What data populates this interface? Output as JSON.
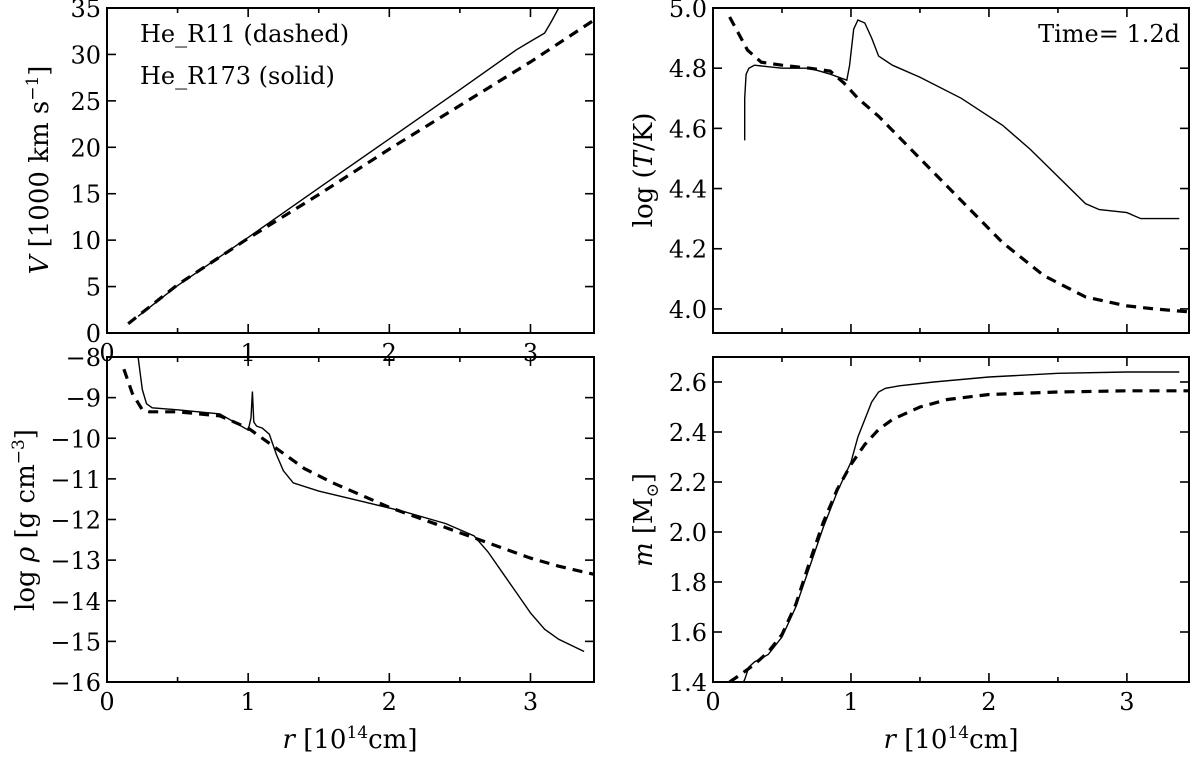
{
  "chart_data": [
    {
      "type": "line",
      "id": "velocity",
      "xlabel": "r [10^14 cm]",
      "ylabel": "V [1000 km s^-1]",
      "xlim": [
        0,
        3.45
      ],
      "ylim": [
        0,
        35
      ],
      "xticks": [
        0,
        1,
        2,
        3
      ],
      "yticks": [
        0,
        5,
        10,
        15,
        20,
        25,
        30,
        35
      ],
      "xticklabels": [
        "0",
        "1",
        "2",
        "3"
      ],
      "yticklabels": [
        "0",
        "5",
        "10",
        "15",
        "20",
        "25",
        "30",
        "35"
      ],
      "annotations": [
        "He_R11 (dashed)",
        "He_R173 (solid)"
      ],
      "series": [
        {
          "style": "dashed",
          "x": [
            0.15,
            0.5,
            1.0,
            1.5,
            2.0,
            2.5,
            3.0,
            3.45
          ],
          "y": [
            1.0,
            5.2,
            10.2,
            14.9,
            19.8,
            24.5,
            29.2,
            33.7
          ]
        },
        {
          "style": "solid",
          "x": [
            0.22,
            0.5,
            1.0,
            1.5,
            2.0,
            2.5,
            2.9,
            3.0,
            3.1,
            3.15,
            3.2
          ],
          "y": [
            1.8,
            5.1,
            10.3,
            15.6,
            20.9,
            26.2,
            30.5,
            31.4,
            32.3,
            33.6,
            35.0
          ]
        }
      ]
    },
    {
      "type": "line",
      "id": "temperature",
      "xlabel": "",
      "ylabel": "log (T/K)",
      "xlim": [
        0,
        3.45
      ],
      "ylim": [
        3.92,
        5.0
      ],
      "xticks": [
        0,
        1,
        2,
        3
      ],
      "yticks": [
        4.0,
        4.2,
        4.4,
        4.6,
        4.8,
        5.0
      ],
      "xticklabels": [],
      "yticklabels": [
        "4.0",
        "4.2",
        "4.4",
        "4.6",
        "4.8",
        "5.0"
      ],
      "annotations": [
        "Time= 1.2d"
      ],
      "series": [
        {
          "style": "dashed",
          "x": [
            0.12,
            0.18,
            0.25,
            0.35,
            0.5,
            0.7,
            0.85,
            0.95,
            1.05,
            1.2,
            1.5,
            1.8,
            2.1,
            2.4,
            2.7,
            3.0,
            3.2,
            3.45
          ],
          "y": [
            4.97,
            4.92,
            4.86,
            4.82,
            4.81,
            4.8,
            4.79,
            4.75,
            4.7,
            4.64,
            4.5,
            4.36,
            4.22,
            4.11,
            4.04,
            4.01,
            4.0,
            3.99
          ]
        },
        {
          "style": "solid",
          "x": [
            0.23,
            0.23,
            0.24,
            0.26,
            0.3,
            0.5,
            0.7,
            0.85,
            0.97,
            0.99,
            1.02,
            1.05,
            1.1,
            1.15,
            1.2,
            1.3,
            1.5,
            1.8,
            2.1,
            2.3,
            2.5,
            2.7,
            2.8,
            3.0,
            3.05,
            3.1,
            3.38
          ],
          "y": [
            4.56,
            4.7,
            4.78,
            4.8,
            4.81,
            4.8,
            4.8,
            4.78,
            4.76,
            4.81,
            4.93,
            4.96,
            4.95,
            4.9,
            4.84,
            4.81,
            4.77,
            4.7,
            4.61,
            4.53,
            4.44,
            4.35,
            4.33,
            4.32,
            4.31,
            4.3,
            4.3
          ]
        }
      ]
    },
    {
      "type": "line",
      "id": "density",
      "xlabel": "r [10^14 cm]",
      "ylabel": "log ρ [g cm^-3]",
      "xlim": [
        0,
        3.45
      ],
      "ylim": [
        -16,
        -8
      ],
      "xticks": [
        0,
        1,
        2,
        3
      ],
      "yticks": [
        -16,
        -15,
        -14,
        -13,
        -12,
        -11,
        -10,
        -9,
        -8
      ],
      "xticklabels": [
        "0",
        "1",
        "2",
        "3"
      ],
      "yticklabels": [
        "−16",
        "−15",
        "−14",
        "−13",
        "−12",
        "−11",
        "−10",
        "−9",
        "−8"
      ],
      "annotations": [],
      "series": [
        {
          "style": "dashed",
          "x": [
            0.12,
            0.18,
            0.25,
            0.3,
            0.5,
            0.8,
            1.0,
            1.2,
            1.4,
            1.6,
            1.8,
            2.0,
            2.2,
            2.4,
            2.6,
            2.8,
            3.0,
            3.2,
            3.45
          ],
          "y": [
            -8.3,
            -8.9,
            -9.3,
            -9.35,
            -9.35,
            -9.45,
            -9.75,
            -10.25,
            -10.75,
            -11.1,
            -11.4,
            -11.7,
            -11.95,
            -12.2,
            -12.45,
            -12.7,
            -12.95,
            -13.15,
            -13.35
          ]
        },
        {
          "style": "solid",
          "x": [
            0.22,
            0.25,
            0.28,
            0.32,
            0.5,
            0.8,
            1.0,
            1.02,
            1.03,
            1.04,
            1.06,
            1.1,
            1.15,
            1.2,
            1.25,
            1.32,
            1.5,
            1.8,
            2.1,
            2.4,
            2.6,
            2.7,
            2.8,
            2.9,
            3.0,
            3.1,
            3.2,
            3.38
          ],
          "y": [
            -8.0,
            -8.8,
            -9.15,
            -9.25,
            -9.3,
            -9.4,
            -9.8,
            -9.5,
            -8.85,
            -9.6,
            -9.7,
            -9.75,
            -9.9,
            -10.4,
            -10.8,
            -11.1,
            -11.3,
            -11.55,
            -11.8,
            -12.1,
            -12.4,
            -12.8,
            -13.3,
            -13.8,
            -14.3,
            -14.7,
            -14.95,
            -15.25
          ]
        }
      ]
    },
    {
      "type": "line",
      "id": "mass",
      "xlabel": "r [10^14 cm]",
      "ylabel": "m [M⊙]",
      "xlim": [
        0,
        3.45
      ],
      "ylim": [
        1.4,
        2.7
      ],
      "xticks": [
        0,
        1,
        2,
        3
      ],
      "yticks": [
        1.4,
        1.6,
        1.8,
        2.0,
        2.2,
        2.4,
        2.6
      ],
      "xticklabels": [
        "0",
        "1",
        "2",
        "3"
      ],
      "yticklabels": [
        "1.4",
        "1.6",
        "1.8",
        "2.0",
        "2.2",
        "2.4",
        "2.6"
      ],
      "annotations": [],
      "series": [
        {
          "style": "dashed",
          "x": [
            0.12,
            0.2,
            0.3,
            0.4,
            0.5,
            0.6,
            0.7,
            0.8,
            0.9,
            1.0,
            1.1,
            1.2,
            1.3,
            1.5,
            1.7,
            2.0,
            2.5,
            3.0,
            3.45
          ],
          "y": [
            1.4,
            1.43,
            1.47,
            1.52,
            1.59,
            1.71,
            1.88,
            2.04,
            2.17,
            2.27,
            2.35,
            2.41,
            2.45,
            2.5,
            2.53,
            2.55,
            2.56,
            2.565,
            2.565
          ]
        },
        {
          "style": "solid",
          "x": [
            0.22,
            0.23,
            0.26,
            0.3,
            0.4,
            0.5,
            0.6,
            0.7,
            0.8,
            0.9,
            1.0,
            1.05,
            1.1,
            1.15,
            1.2,
            1.25,
            1.35,
            1.6,
            2.0,
            2.5,
            3.0,
            3.38
          ],
          "y": [
            1.4,
            1.41,
            1.46,
            1.48,
            1.51,
            1.58,
            1.7,
            1.86,
            2.02,
            2.16,
            2.28,
            2.38,
            2.45,
            2.52,
            2.56,
            2.575,
            2.585,
            2.6,
            2.62,
            2.635,
            2.64,
            2.64
          ]
        }
      ]
    }
  ]
}
